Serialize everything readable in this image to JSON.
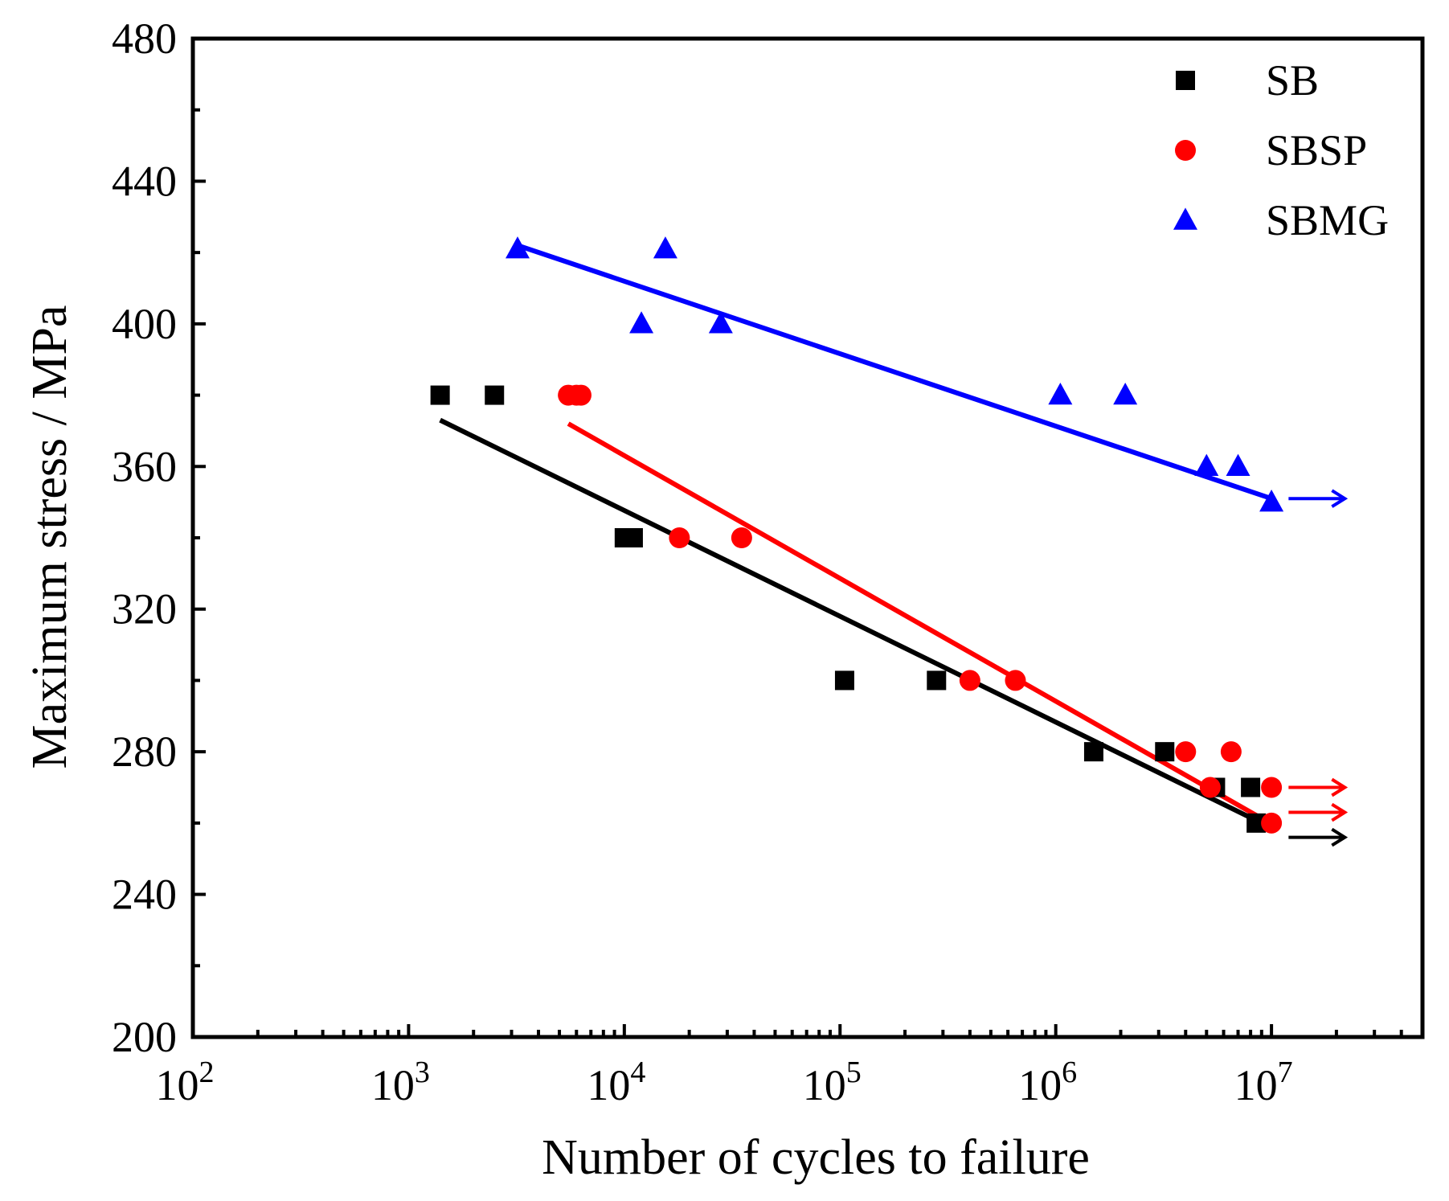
{
  "chart_data": {
    "type": "scatter",
    "title": "",
    "xlabel": "Number of cycles to failure",
    "ylabel": "Maximum stress / MPa",
    "xscale": "log",
    "xlim_exp": [
      2,
      7.7
    ],
    "ylim": [
      200,
      480
    ],
    "yticks": [
      200,
      240,
      280,
      320,
      360,
      400,
      440,
      480
    ],
    "xtick_exponents": [
      2,
      3,
      4,
      5,
      6,
      7
    ],
    "xtick_base": "10",
    "legend_position": "top-right",
    "series": [
      {
        "name": "SB",
        "color": "#000000",
        "marker": "square",
        "points": [
          {
            "x": 1400,
            "y": 380
          },
          {
            "x": 2500,
            "y": 380
          },
          {
            "x": 10000,
            "y": 340
          },
          {
            "x": 11000,
            "y": 340
          },
          {
            "x": 105000,
            "y": 300
          },
          {
            "x": 280000,
            "y": 300
          },
          {
            "x": 1500000,
            "y": 280
          },
          {
            "x": 3200000,
            "y": 280
          },
          {
            "x": 5500000,
            "y": 270
          },
          {
            "x": 8000000,
            "y": 270
          },
          {
            "x": 8500000,
            "y": 260
          }
        ],
        "fit": [
          {
            "x": 1400,
            "y": 373
          },
          {
            "x": 9000000,
            "y": 260
          }
        ],
        "runout_arrows": [
          {
            "x": 12000000,
            "y": 256
          }
        ]
      },
      {
        "name": "SBSP",
        "color": "#ff0000",
        "marker": "circle",
        "points": [
          {
            "x": 5500,
            "y": 380
          },
          {
            "x": 6000,
            "y": 380
          },
          {
            "x": 6300,
            "y": 380
          },
          {
            "x": 18000,
            "y": 340
          },
          {
            "x": 35000,
            "y": 340
          },
          {
            "x": 400000,
            "y": 300
          },
          {
            "x": 650000,
            "y": 300
          },
          {
            "x": 4000000,
            "y": 280
          },
          {
            "x": 6500000,
            "y": 280
          },
          {
            "x": 5200000,
            "y": 270
          },
          {
            "x": 10000000,
            "y": 270
          },
          {
            "x": 10000000,
            "y": 260
          }
        ],
        "fit": [
          {
            "x": 5500,
            "y": 372
          },
          {
            "x": 10500000,
            "y": 259
          }
        ],
        "runout_arrows": [
          {
            "x": 12000000,
            "y": 270
          },
          {
            "x": 12000000,
            "y": 263
          }
        ]
      },
      {
        "name": "SBMG",
        "color": "#0000ff",
        "marker": "triangle",
        "points": [
          {
            "x": 3200,
            "y": 421
          },
          {
            "x": 15500,
            "y": 421
          },
          {
            "x": 12000,
            "y": 400
          },
          {
            "x": 28000,
            "y": 400
          },
          {
            "x": 1050000,
            "y": 380
          },
          {
            "x": 2100000,
            "y": 380
          },
          {
            "x": 5000000,
            "y": 360
          },
          {
            "x": 7000000,
            "y": 360
          },
          {
            "x": 10000000,
            "y": 350
          }
        ],
        "fit": [
          {
            "x": 3200,
            "y": 422
          },
          {
            "x": 10000000,
            "y": 351
          }
        ],
        "runout_arrows": [
          {
            "x": 12000000,
            "y": 351
          }
        ]
      }
    ]
  }
}
